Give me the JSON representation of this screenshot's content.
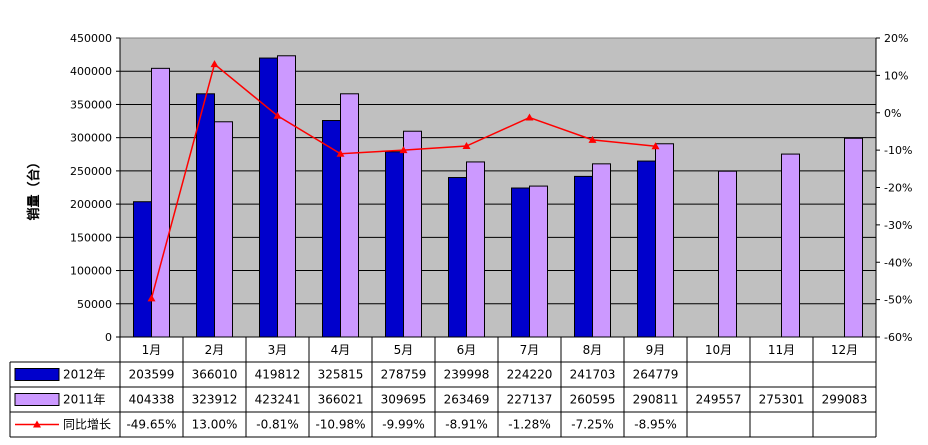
{
  "chart_data": {
    "type": "bar",
    "ylabel": "销量（台）",
    "categories": [
      "1月",
      "2月",
      "3月",
      "4月",
      "5月",
      "6月",
      "7月",
      "8月",
      "9月",
      "10月",
      "11月",
      "12月"
    ],
    "ylim": [
      0,
      450000
    ],
    "yticks": [
      "0",
      "50000",
      "100000",
      "150000",
      "200000",
      "250000",
      "300000",
      "350000",
      "400000",
      "450000"
    ],
    "y2lim": [
      -60,
      20
    ],
    "y2ticks": [
      "-60%",
      "-50%",
      "-40%",
      "-30%",
      "-20%",
      "-10%",
      "0%",
      "10%",
      "20%"
    ],
    "grid": "horizontal",
    "series": [
      {
        "name": "2012年",
        "kind": "bar",
        "color": "#0000CC",
        "values": [
          203599,
          366010,
          419812,
          325815,
          278759,
          239998,
          224220,
          241703,
          264779,
          null,
          null,
          null
        ],
        "labels": [
          "203599",
          "366010",
          "419812",
          "325815",
          "278759",
          "239998",
          "224220",
          "241703",
          "264779",
          "",
          "",
          ""
        ]
      },
      {
        "name": "2011年",
        "kind": "bar",
        "color": "#CC99FF",
        "values": [
          404338,
          323912,
          423241,
          366021,
          309695,
          263469,
          227137,
          260595,
          290811,
          249557,
          275301,
          299083
        ],
        "labels": [
          "404338",
          "323912",
          "423241",
          "366021",
          "309695",
          "263469",
          "227137",
          "260595",
          "290811",
          "249557",
          "275301",
          "299083"
        ]
      },
      {
        "name": "同比增长",
        "kind": "line",
        "axis": "right",
        "color": "#FF0000",
        "values": [
          -49.65,
          13.0,
          -0.81,
          -10.98,
          -9.99,
          -8.91,
          -1.28,
          -7.25,
          -8.95,
          null,
          null,
          null
        ],
        "labels": [
          "-49.65%",
          "13.00%",
          "-0.81%",
          "-10.98%",
          "-9.99%",
          "-8.91%",
          "-1.28%",
          "-7.25%",
          "-8.95%",
          "",
          "",
          ""
        ]
      }
    ]
  }
}
